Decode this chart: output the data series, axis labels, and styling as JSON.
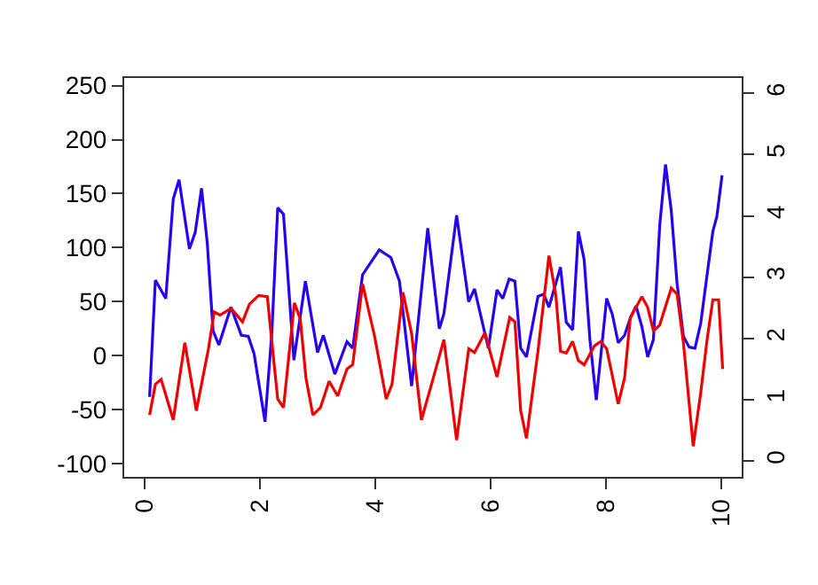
{
  "chart_data": {
    "type": "line",
    "xlim": [
      -0.35,
      10.35
    ],
    "xticks": [
      0,
      2,
      4,
      6,
      8,
      10
    ],
    "ylim": [
      -112,
      257
    ],
    "yticks": [
      -100,
      -50,
      0,
      50,
      100,
      150,
      200,
      250
    ],
    "y2lim": [
      -0.26,
      6.25
    ],
    "y2ticks": [
      0,
      1,
      2,
      3,
      4,
      5,
      6
    ],
    "marker": "none",
    "line_style": "solid",
    "series": [
      {
        "color": "#2a00f0",
        "x": [
          0.09,
          0.19,
          0.37,
          0.5,
          0.6,
          0.78,
          0.88,
          0.99,
          1.09,
          1.19,
          1.29,
          1.5,
          1.68,
          1.8,
          1.9,
          2.09,
          2.21,
          2.31,
          2.41,
          2.59,
          2.79,
          3.0,
          3.1,
          3.3,
          3.51,
          3.61,
          3.78,
          4.07,
          4.27,
          4.42,
          4.63,
          4.91,
          5.11,
          5.19,
          5.41,
          5.62,
          5.72,
          5.96,
          6.11,
          6.21,
          6.32,
          6.42,
          6.52,
          6.62,
          6.82,
          6.92,
          7.01,
          7.21,
          7.31,
          7.42,
          7.52,
          7.62,
          7.72,
          7.83,
          8.01,
          8.11,
          8.21,
          8.32,
          8.42,
          8.52,
          8.62,
          8.72,
          8.82,
          8.93,
          9.03,
          9.13,
          9.23,
          9.34,
          9.44,
          9.54,
          9.64,
          9.75,
          9.85,
          9.92,
          10.01
        ],
        "values": [
          -38,
          70,
          53,
          145,
          163,
          99,
          114,
          155,
          104,
          23,
          10,
          45,
          19,
          18,
          2,
          -61,
          23,
          137,
          131,
          -4,
          69,
          3,
          19,
          -17,
          13,
          7,
          75,
          98,
          91,
          69,
          -28,
          118,
          25,
          39,
          130,
          50,
          62,
          7,
          61,
          53,
          71,
          69,
          7,
          -1,
          55,
          57,
          45,
          82,
          31,
          24,
          115,
          89,
          15,
          -41,
          53,
          38,
          12,
          19,
          35,
          46,
          27,
          -1,
          15,
          121,
          177,
          134,
          67,
          18,
          8,
          7,
          30,
          75,
          115,
          129,
          167
        ]
      },
      {
        "color": "#ee0000",
        "axis": "y2",
        "x": [
          0.09,
          0.19,
          0.29,
          0.5,
          0.7,
          0.9,
          1.11,
          1.21,
          1.31,
          1.5,
          1.7,
          1.82,
          1.98,
          2.13,
          2.21,
          2.31,
          2.41,
          2.6,
          2.7,
          2.8,
          2.92,
          3.05,
          3.2,
          3.35,
          3.51,
          3.61,
          3.78,
          3.99,
          4.19,
          4.29,
          4.48,
          4.63,
          4.8,
          4.99,
          5.19,
          5.41,
          5.62,
          5.72,
          5.9,
          6.11,
          6.33,
          6.42,
          6.52,
          6.62,
          6.82,
          7.01,
          7.13,
          7.21,
          7.31,
          7.42,
          7.52,
          7.62,
          7.8,
          7.91,
          8.01,
          8.21,
          8.32,
          8.42,
          8.62,
          8.72,
          8.82,
          8.93,
          9.13,
          9.23,
          9.34,
          9.51,
          9.64,
          9.75,
          9.85,
          9.95,
          10.02
        ],
        "values": [
          0.75,
          1.25,
          1.33,
          0.67,
          1.93,
          0.82,
          1.83,
          2.43,
          2.38,
          2.49,
          2.27,
          2.56,
          2.7,
          2.68,
          1.93,
          1.01,
          0.87,
          2.58,
          2.32,
          1.35,
          0.75,
          0.87,
          1.3,
          1.06,
          1.5,
          1.57,
          2.89,
          2.03,
          1.01,
          1.25,
          2.75,
          2.08,
          0.67,
          1.3,
          1.98,
          0.34,
          1.83,
          1.77,
          2.09,
          1.37,
          2.34,
          2.27,
          0.82,
          0.37,
          1.79,
          3.35,
          2.7,
          1.79,
          1.76,
          1.95,
          1.64,
          1.57,
          1.88,
          1.95,
          1.83,
          0.93,
          1.35,
          2.34,
          2.68,
          2.51,
          2.12,
          2.22,
          2.82,
          2.72,
          1.93,
          0.24,
          1.11,
          1.98,
          2.63,
          2.63,
          1.5
        ]
      }
    ]
  }
}
